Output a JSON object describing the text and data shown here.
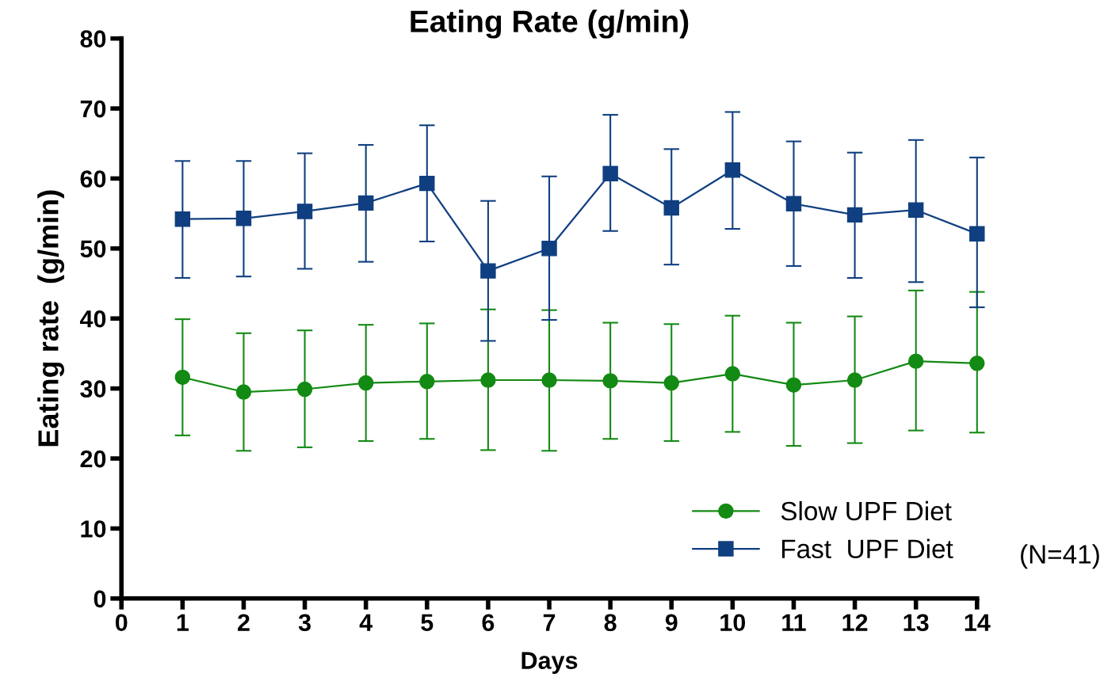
{
  "chart_data": {
    "type": "line",
    "title": "Eating Rate (g/min)",
    "xlabel": "Days",
    "ylabel": "Eating rate  (g/min)",
    "x": [
      1,
      2,
      3,
      4,
      5,
      6,
      7,
      8,
      9,
      10,
      11,
      12,
      13,
      14
    ],
    "xlim": [
      0,
      14
    ],
    "xticks": [
      0,
      1,
      2,
      3,
      4,
      5,
      6,
      7,
      8,
      9,
      10,
      11,
      12,
      13,
      14
    ],
    "ylim": [
      0,
      80
    ],
    "yticks": [
      0,
      10,
      20,
      30,
      40,
      50,
      60,
      70,
      80
    ],
    "grid": false,
    "legend": "bottom right",
    "line_style": "solid",
    "annotations": [
      "(N=41)"
    ],
    "series": [
      {
        "name": "Slow UPF Diet",
        "color": "#138a13",
        "marker": "circle",
        "values": [
          31.6,
          29.5,
          29.9,
          30.8,
          31.0,
          31.2,
          31.2,
          31.1,
          30.8,
          32.1,
          30.5,
          31.2,
          33.9,
          33.6
        ],
        "errors": [
          [
            23.3,
            39.9
          ],
          [
            21.1,
            37.9
          ],
          [
            21.6,
            38.3
          ],
          [
            22.5,
            39.1
          ],
          [
            22.8,
            39.3
          ],
          [
            21.2,
            41.3
          ],
          [
            21.1,
            41.2
          ],
          [
            22.8,
            39.4
          ],
          [
            22.5,
            39.2
          ],
          [
            23.8,
            40.4
          ],
          [
            21.8,
            39.4
          ],
          [
            22.2,
            40.3
          ],
          [
            24.0,
            44.0
          ],
          [
            23.7,
            43.8
          ]
        ]
      },
      {
        "name": "Fast  UPF Diet",
        "color": "#0f3f80",
        "marker": "square",
        "values": [
          54.2,
          54.3,
          55.3,
          56.5,
          59.3,
          46.8,
          50.0,
          60.7,
          55.8,
          61.2,
          56.4,
          54.8,
          55.5,
          52.1
        ],
        "errors": [
          [
            45.8,
            62.5
          ],
          [
            46.0,
            62.5
          ],
          [
            47.1,
            63.6
          ],
          [
            48.1,
            64.8
          ],
          [
            51.0,
            67.6
          ],
          [
            36.8,
            56.8
          ],
          [
            39.8,
            60.3
          ],
          [
            52.5,
            69.1
          ],
          [
            47.7,
            64.2
          ],
          [
            52.8,
            69.5
          ],
          [
            47.5,
            65.3
          ],
          [
            45.8,
            63.7
          ],
          [
            45.2,
            65.5
          ],
          [
            41.6,
            63.0
          ]
        ]
      }
    ]
  }
}
